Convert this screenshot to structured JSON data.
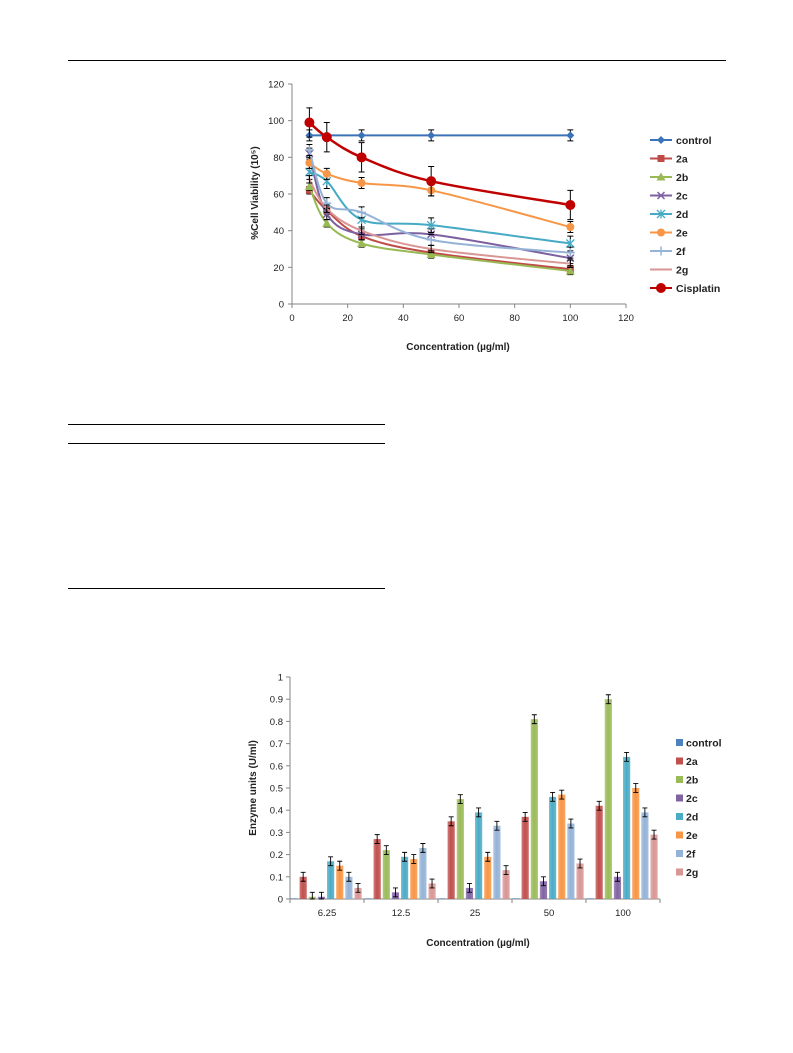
{
  "chart_data": [
    {
      "type": "line",
      "xlabel": "Concentration (µg/ml)",
      "ylabel": "%Cell Viability (10⁵)",
      "xlim": [
        0,
        120
      ],
      "ylim": [
        0,
        120
      ],
      "x_ticks": [
        "0",
        "20",
        "40",
        "60",
        "80",
        "100",
        "120"
      ],
      "y_ticks": [
        "0",
        "20",
        "40",
        "60",
        "80",
        "100",
        "120"
      ],
      "grid": false,
      "legend_position": "right",
      "x": [
        6.25,
        12.5,
        25,
        50,
        100
      ],
      "series": [
        {
          "name": "control",
          "color": "#3b73b9",
          "marker": "diamond",
          "values": [
            92,
            92,
            92,
            92,
            92
          ],
          "errors": [
            3,
            0,
            3,
            3,
            3
          ]
        },
        {
          "name": "2a",
          "color": "#be4b48",
          "marker": "square",
          "values": [
            62,
            51,
            37,
            28,
            19
          ],
          "errors": [
            2,
            2,
            2,
            2,
            2
          ]
        },
        {
          "name": "2b",
          "color": "#98b954",
          "marker": "triangle",
          "values": [
            64,
            44,
            33,
            27,
            18
          ],
          "errors": [
            2,
            2,
            2,
            2,
            2
          ]
        },
        {
          "name": "2c",
          "color": "#7d60a0",
          "marker": "x",
          "values": [
            82,
            49,
            38,
            38,
            25
          ],
          "errors": [
            3,
            3,
            3,
            3,
            3
          ]
        },
        {
          "name": "2d",
          "color": "#46aac5",
          "marker": "star",
          "values": [
            72,
            67,
            46,
            43,
            33
          ],
          "errors": [
            4,
            4,
            4,
            4,
            4
          ]
        },
        {
          "name": "2e",
          "color": "#f79646",
          "marker": "circle",
          "values": [
            77,
            71,
            66,
            62,
            42
          ],
          "errors": [
            3,
            3,
            3,
            3,
            3
          ]
        },
        {
          "name": "2f",
          "color": "#95b3d7",
          "marker": "plus",
          "values": [
            84,
            55,
            50,
            35,
            28
          ],
          "errors": [
            3,
            3,
            3,
            3,
            3
          ]
        },
        {
          "name": "2g",
          "color": "#d99694",
          "marker": "none",
          "values": [
            68,
            52,
            40,
            30,
            22
          ],
          "errors": [
            2,
            2,
            2,
            2,
            2
          ]
        },
        {
          "name": "Cisplatin",
          "color": "#c00000",
          "marker": "circle-large",
          "values": [
            99,
            91,
            80,
            67,
            54
          ],
          "errors": [
            8,
            8,
            8,
            8,
            8
          ]
        }
      ]
    },
    {
      "type": "bar",
      "xlabel": "Concentration (µg/ml)",
      "ylabel": "Enzyme units (U/ml)",
      "ylim": [
        0,
        1
      ],
      "y_ticks": [
        "0",
        "0.1",
        "0.2",
        "0.3",
        "0.4",
        "0.5",
        "0.6",
        "0.7",
        "0.8",
        "0.9",
        "1"
      ],
      "grid": false,
      "legend_position": "right",
      "categories": [
        "6.25",
        "12.5",
        "25",
        "50",
        "100"
      ],
      "series": [
        {
          "name": "control",
          "color": "#4f81bd",
          "values": [
            0.003,
            0.003,
            0.003,
            0.003,
            0.003
          ],
          "errors": [
            0,
            0,
            0,
            0,
            0
          ]
        },
        {
          "name": "2a",
          "color": "#c0504d",
          "values": [
            0.1,
            0.27,
            0.35,
            0.37,
            0.42
          ],
          "errors": [
            0.02,
            0.02,
            0.02,
            0.02,
            0.02
          ]
        },
        {
          "name": "2b",
          "color": "#9bbb59",
          "values": [
            0.01,
            0.22,
            0.45,
            0.81,
            0.9
          ],
          "errors": [
            0.02,
            0.02,
            0.02,
            0.02,
            0.02
          ]
        },
        {
          "name": "2c",
          "color": "#8064a2",
          "values": [
            0.01,
            0.03,
            0.05,
            0.08,
            0.1
          ],
          "errors": [
            0.02,
            0.02,
            0.02,
            0.02,
            0.02
          ]
        },
        {
          "name": "2d",
          "color": "#4bacc6",
          "values": [
            0.17,
            0.19,
            0.39,
            0.46,
            0.64
          ],
          "errors": [
            0.02,
            0.02,
            0.02,
            0.02,
            0.02
          ]
        },
        {
          "name": "2e",
          "color": "#f79646",
          "values": [
            0.15,
            0.18,
            0.19,
            0.47,
            0.5
          ],
          "errors": [
            0.02,
            0.02,
            0.02,
            0.02,
            0.02
          ]
        },
        {
          "name": "2f",
          "color": "#95b3d7",
          "values": [
            0.1,
            0.23,
            0.33,
            0.34,
            0.39
          ],
          "errors": [
            0.02,
            0.02,
            0.02,
            0.02,
            0.02
          ]
        },
        {
          "name": "2g",
          "color": "#d99694",
          "values": [
            0.05,
            0.07,
            0.13,
            0.16,
            0.29
          ],
          "errors": [
            0.02,
            0.02,
            0.02,
            0.02,
            0.02
          ]
        }
      ]
    }
  ]
}
